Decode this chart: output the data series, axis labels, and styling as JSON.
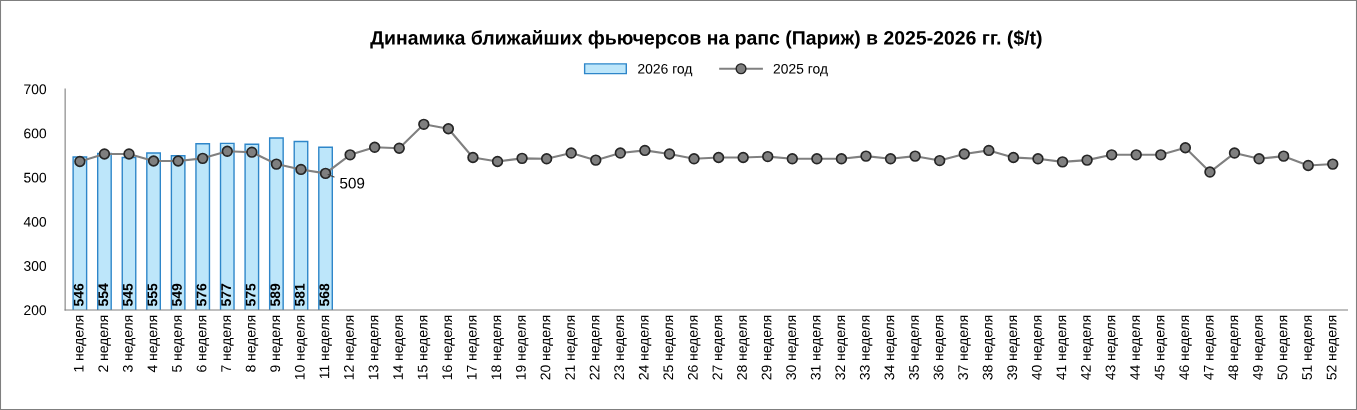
{
  "chart_data": {
    "type": "bar",
    "title": "Динамика ближайших фьючерсов на рапс (Париж) в 2025-2026 гг. ($/t)",
    "categories": [
      "1 неделя",
      "2 неделя",
      "3 неделя",
      "4 неделя",
      "5 неделя",
      "6 неделя",
      "7 неделя",
      "8 неделя",
      "9 неделя",
      "10 неделя",
      "11 неделя",
      "12 неделя",
      "13 неделя",
      "14 неделя",
      "15 неделя",
      "16 неделя",
      "17 неделя",
      "18 неделя",
      "19 неделя",
      "20 неделя",
      "21 неделя",
      "22 неделя",
      "23 неделя",
      "24 неделя",
      "25 неделя",
      "26 неделя",
      "27 неделя",
      "28 неделя",
      "29 неделя",
      "30 неделя",
      "31 неделя",
      "32 неделя",
      "33 неделя",
      "34 неделя",
      "35 неделя",
      "36 неделя",
      "37 неделя",
      "38 неделя",
      "39 неделя",
      "40 неделя",
      "41 неделя",
      "42 неделя",
      "43 неделя",
      "44 неделя",
      "45 неделя",
      "46 неделя",
      "47 неделя",
      "48 неделя",
      "49 неделя",
      "50 неделя",
      "51 неделя",
      "52 неделя"
    ],
    "series": [
      {
        "name": "2026 год",
        "color": "#bde6fa",
        "values": [
          546,
          554,
          545,
          555,
          549,
          576,
          577,
          575,
          589,
          581,
          568,
          null,
          null,
          null,
          null,
          null,
          null,
          null,
          null,
          null,
          null,
          null,
          null,
          null,
          null,
          null,
          null,
          null,
          null,
          null,
          null,
          null,
          null,
          null,
          null,
          null,
          null,
          null,
          null,
          null,
          null,
          null,
          null,
          null,
          null,
          null,
          null,
          null,
          null,
          null,
          null,
          null
        ],
        "value_labels": [
          "546",
          "554",
          "545",
          "555",
          "549",
          "576",
          "577",
          "575",
          "589",
          "581",
          "568",
          null,
          null,
          null,
          null,
          null,
          null,
          null,
          null,
          null,
          null,
          null,
          null,
          null,
          null,
          null,
          null,
          null,
          null,
          null,
          null,
          null,
          null,
          null,
          null,
          null,
          null,
          null,
          null,
          null,
          null,
          null,
          null,
          null,
          null,
          null,
          null,
          null,
          null,
          null,
          null,
          null
        ]
      },
      {
        "name": "2025 год",
        "type": "line",
        "color": "#808080",
        "marker": "circle",
        "values": [
          536,
          553,
          553,
          537,
          537,
          543,
          559,
          557,
          530,
          518,
          509,
          551,
          568,
          566,
          620,
          610,
          545,
          536,
          543,
          542,
          555,
          539,
          555,
          561,
          553,
          542,
          545,
          545,
          547,
          542,
          542,
          542,
          548,
          542,
          548,
          538,
          553,
          561,
          545,
          542,
          535,
          539,
          551,
          551,
          551,
          567,
          512,
          555,
          542,
          548,
          527,
          530
        ],
        "value_labels": [
          null,
          null,
          null,
          null,
          null,
          null,
          null,
          null,
          null,
          null,
          "509",
          null,
          null,
          null,
          null,
          null,
          null,
          null,
          null,
          null,
          null,
          null,
          null,
          null,
          null,
          null,
          null,
          null,
          null,
          null,
          null,
          null,
          null,
          null,
          null,
          null,
          null,
          null,
          null,
          null,
          null,
          null,
          null,
          null,
          null,
          null,
          null,
          null,
          null,
          null,
          null,
          null
        ]
      }
    ],
    "ylim": [
      200,
      700
    ],
    "yticks": [
      200,
      300,
      400,
      500,
      600,
      700
    ],
    "grid": false,
    "legend": "top"
  }
}
